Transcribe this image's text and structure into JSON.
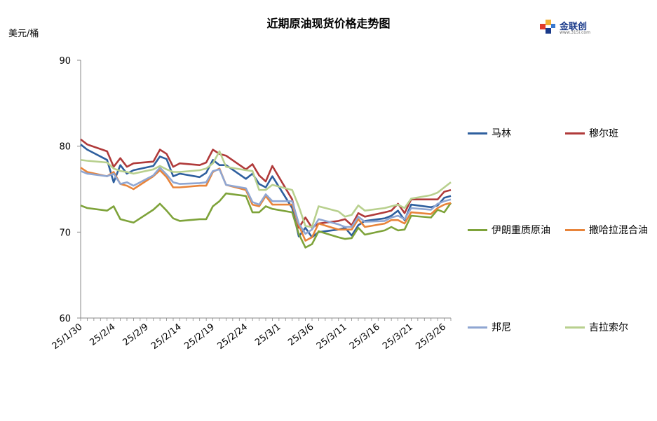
{
  "title": "近期原油现货价格走势图",
  "unit_label": "美元/桶",
  "logo": {
    "name": "金联创",
    "sub": "www.315i.com"
  },
  "chart_data": {
    "type": "line",
    "title": "近期原油现货价格走势图",
    "ylabel": "美元/桶",
    "xlabel": "",
    "ylim": [
      60,
      90
    ],
    "yticks": [
      "60",
      "70",
      "80",
      "90"
    ],
    "x_tick_labels": [
      "25/1/30",
      "25/2/4",
      "25/2/9",
      "25/2/14",
      "25/2/19",
      "25/2/24",
      "25/3/1",
      "25/3/6",
      "25/3/11",
      "25/3/16",
      "25/3/21",
      "25/3/26"
    ],
    "x_range": [
      "2025-01-30",
      "2025-03-27"
    ],
    "dates": [
      "2025-01-30",
      "2025-01-31",
      "2025-02-03",
      "2025-02-04",
      "2025-02-05",
      "2025-02-06",
      "2025-02-07",
      "2025-02-10",
      "2025-02-11",
      "2025-02-12",
      "2025-02-13",
      "2025-02-14",
      "2025-02-17",
      "2025-02-18",
      "2025-02-19",
      "2025-02-20",
      "2025-02-21",
      "2025-02-24",
      "2025-02-25",
      "2025-02-26",
      "2025-02-27",
      "2025-02-28",
      "2025-03-03",
      "2025-03-04",
      "2025-03-05",
      "2025-03-06",
      "2025-03-07",
      "2025-03-10",
      "2025-03-11",
      "2025-03-12",
      "2025-03-13",
      "2025-03-14",
      "2025-03-17",
      "2025-03-18",
      "2025-03-19",
      "2025-03-20",
      "2025-03-21",
      "2025-03-24",
      "2025-03-25",
      "2025-03-26",
      "2025-03-27"
    ],
    "legend_position": "right",
    "grid": false,
    "series": [
      {
        "name": "马林",
        "color": "#2e5f9e",
        "values": [
          80.2,
          79.6,
          78.4,
          75.8,
          77.8,
          76.8,
          77.2,
          77.7,
          78.8,
          78.5,
          76.5,
          76.8,
          76.4,
          76.9,
          78.4,
          77.8,
          77.8,
          76.2,
          76.8,
          75.6,
          75.2,
          76.5,
          72.8,
          69.5,
          70.5,
          69.4,
          70.0,
          70.3,
          70.5,
          69.6,
          70.8,
          71.3,
          71.6,
          71.9,
          72.5,
          71.4,
          73.2,
          72.9,
          73.1,
          74.0,
          74.2
        ]
      },
      {
        "name": "穆尔班",
        "color": "#b03a3a",
        "values": [
          80.8,
          80.2,
          79.4,
          77.6,
          78.6,
          77.6,
          78.0,
          78.2,
          79.6,
          79.1,
          77.6,
          78.0,
          77.8,
          78.1,
          79.6,
          79.1,
          78.9,
          77.3,
          77.9,
          76.6,
          75.9,
          77.7,
          73.8,
          70.5,
          71.7,
          70.5,
          71.0,
          71.3,
          71.5,
          70.8,
          72.2,
          71.8,
          72.3,
          72.5,
          73.3,
          72.2,
          73.8,
          73.8,
          73.8,
          74.7,
          74.9
        ]
      },
      {
        "name": "伊朗重质原油",
        "color": "#7ea33a",
        "values": [
          73.1,
          72.8,
          72.5,
          73.0,
          71.5,
          71.3,
          71.1,
          72.6,
          73.3,
          72.5,
          71.6,
          71.3,
          71.5,
          71.5,
          73.0,
          73.6,
          74.5,
          74.2,
          72.3,
          72.3,
          73.0,
          72.7,
          72.3,
          69.8,
          68.2,
          68.6,
          70.1,
          69.4,
          69.2,
          69.3,
          70.5,
          69.7,
          70.2,
          70.6,
          70.2,
          70.3,
          71.9,
          71.7,
          72.6,
          72.3,
          73.4
        ]
      },
      {
        "name": "撒哈拉混合油",
        "color": "#e8843a",
        "values": [
          77.5,
          77.0,
          76.5,
          77.0,
          75.6,
          75.4,
          75.0,
          76.5,
          77.2,
          76.4,
          75.2,
          75.2,
          75.4,
          75.4,
          77.0,
          77.4,
          75.5,
          74.9,
          73.2,
          73.0,
          74.2,
          73.2,
          73.2,
          70.8,
          69.0,
          69.4,
          71.0,
          70.3,
          70.3,
          70.3,
          71.5,
          70.6,
          71.0,
          71.4,
          71.4,
          71.0,
          72.3,
          72.1,
          72.8,
          73.2,
          73.4
        ]
      },
      {
        "name": "邦尼",
        "color": "#8fa6d2",
        "values": [
          77.1,
          76.8,
          76.5,
          76.8,
          75.6,
          75.8,
          75.4,
          76.6,
          77.5,
          76.7,
          75.8,
          75.6,
          75.7,
          75.8,
          77.1,
          77.3,
          75.5,
          75.1,
          73.5,
          73.2,
          74.4,
          73.6,
          73.6,
          71.0,
          69.8,
          70.3,
          71.5,
          70.9,
          70.6,
          70.6,
          71.8,
          71.2,
          71.3,
          71.7,
          71.9,
          71.5,
          72.8,
          72.6,
          73.3,
          73.6,
          73.8
        ]
      },
      {
        "name": "吉拉索尔",
        "color": "#b8d08e",
        "values": [
          78.4,
          78.3,
          78.1,
          77.4,
          77.1,
          77.0,
          76.8,
          77.3,
          77.7,
          77.3,
          77.0,
          77.0,
          77.2,
          77.4,
          78.0,
          79.4,
          77.6,
          77.2,
          77.1,
          74.9,
          74.9,
          75.5,
          74.9,
          73.0,
          70.7,
          70.6,
          73.0,
          72.4,
          71.8,
          72.0,
          73.1,
          72.5,
          72.8,
          73.0,
          73.2,
          72.8,
          73.9,
          74.3,
          74.6,
          75.2,
          75.8
        ]
      }
    ]
  }
}
